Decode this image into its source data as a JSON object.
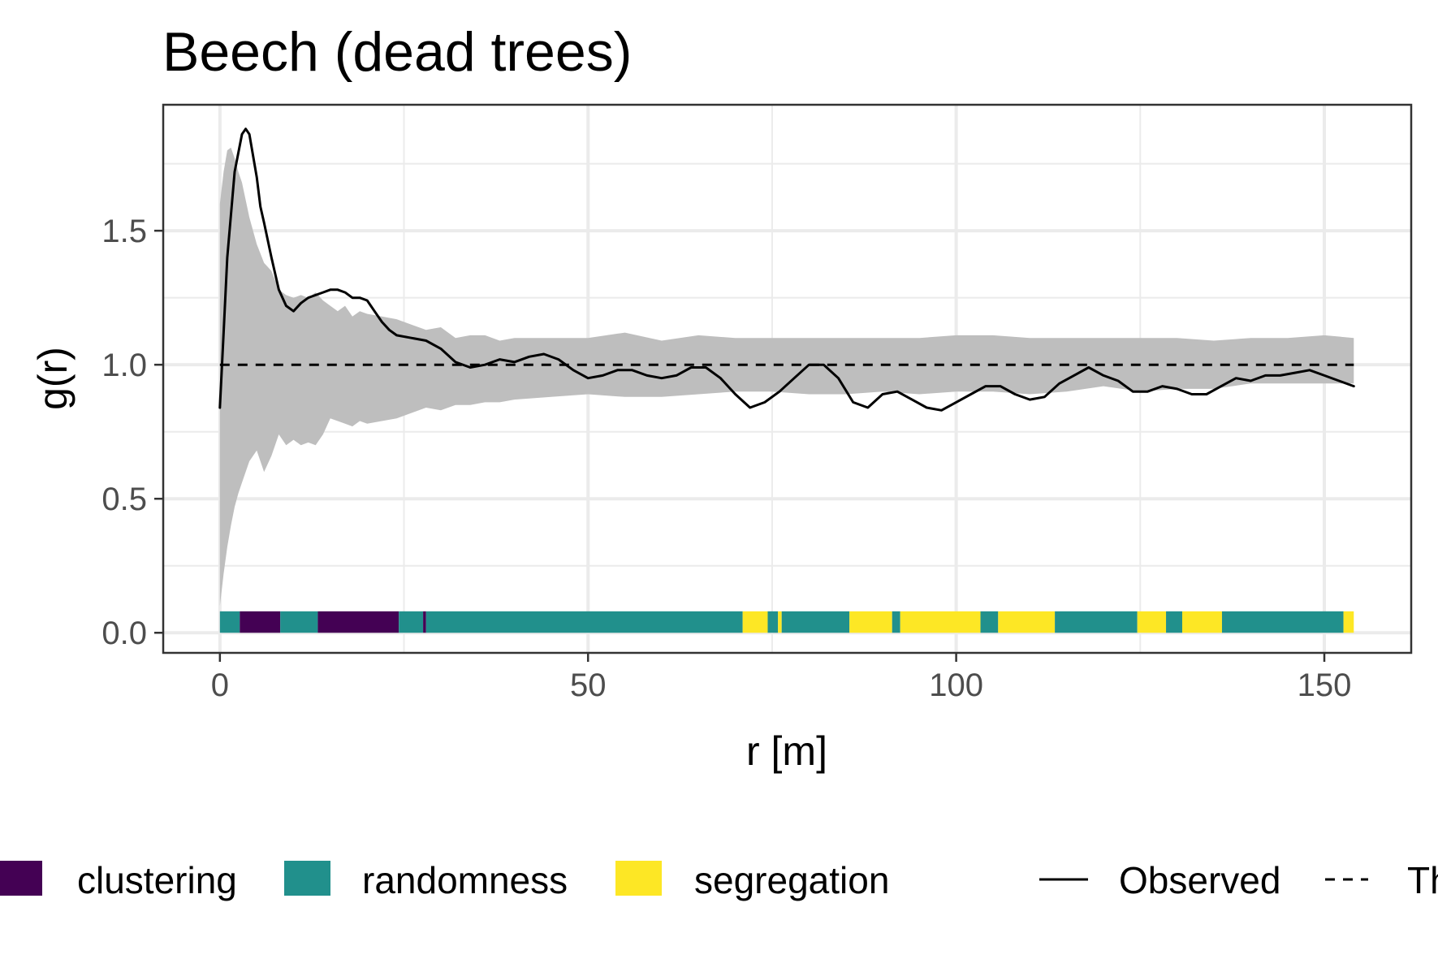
{
  "chart_data": {
    "type": "line",
    "title": "Beech (dead trees)",
    "xlabel": "r [m]",
    "ylabel": "g(r)",
    "xlim": [
      -7.7,
      161.8
    ],
    "ylim": [
      -0.075,
      1.97
    ],
    "x_ticks": [
      0,
      50,
      100,
      150
    ],
    "x_tick_labels": [
      "0",
      "50",
      "100",
      "150"
    ],
    "y_ticks": [
      0.0,
      0.5,
      1.0,
      1.5
    ],
    "y_tick_labels": [
      "0.0",
      "0.5",
      "1.0",
      "1.5"
    ],
    "grid": true,
    "legend_position": "bottom",
    "series": [
      {
        "name": "Observed",
        "style": "solid",
        "color": "#000000",
        "x": [
          0,
          0.5,
          1,
          2,
          3,
          3.5,
          4,
          5,
          5.5,
          6,
          7,
          8,
          9,
          10,
          11,
          12,
          13,
          14,
          15,
          16,
          17,
          18,
          19,
          20,
          21,
          22,
          23,
          24,
          26,
          28,
          30,
          32,
          34,
          36,
          38,
          40,
          42,
          44,
          46,
          48,
          50,
          52,
          54,
          56,
          58,
          60,
          62,
          64,
          66,
          68,
          70,
          72,
          74,
          76,
          78,
          80,
          82,
          84,
          86,
          88,
          90,
          92,
          94,
          96,
          98,
          100,
          102,
          104,
          106,
          108,
          110,
          112,
          114,
          116,
          118,
          120,
          122,
          124,
          126,
          128,
          130,
          132,
          134,
          136,
          138,
          140,
          142,
          144,
          146,
          148,
          150,
          152,
          154
        ],
        "y": [
          0.84,
          1.12,
          1.4,
          1.72,
          1.86,
          1.88,
          1.86,
          1.7,
          1.59,
          1.53,
          1.4,
          1.28,
          1.22,
          1.2,
          1.23,
          1.25,
          1.26,
          1.27,
          1.28,
          1.28,
          1.27,
          1.25,
          1.25,
          1.24,
          1.2,
          1.16,
          1.13,
          1.11,
          1.1,
          1.09,
          1.06,
          1.01,
          0.99,
          1.0,
          1.02,
          1.01,
          1.03,
          1.04,
          1.02,
          0.98,
          0.95,
          0.96,
          0.98,
          0.98,
          0.96,
          0.95,
          0.96,
          0.99,
          0.99,
          0.95,
          0.89,
          0.84,
          0.86,
          0.9,
          0.95,
          1.0,
          1.0,
          0.95,
          0.86,
          0.84,
          0.89,
          0.9,
          0.87,
          0.84,
          0.83,
          0.86,
          0.89,
          0.92,
          0.92,
          0.89,
          0.87,
          0.88,
          0.93,
          0.96,
          0.99,
          0.96,
          0.94,
          0.9,
          0.9,
          0.92,
          0.91,
          0.89,
          0.89,
          0.92,
          0.95,
          0.94,
          0.96,
          0.96,
          0.97,
          0.98,
          0.96,
          0.94,
          0.92
        ]
      },
      {
        "name": "Theoretical",
        "style": "dashed",
        "color": "#000000",
        "x": [
          0,
          154
        ],
        "y": [
          1.0,
          1.0
        ]
      }
    ],
    "envelope": {
      "color": "#bebebe",
      "x": [
        0,
        0.5,
        1,
        1.5,
        2,
        2.5,
        3,
        4,
        5,
        6,
        7,
        8,
        9,
        10,
        11,
        12,
        13,
        14,
        15,
        16,
        17,
        18,
        19,
        20,
        22,
        24,
        26,
        28,
        30,
        32,
        34,
        36,
        38,
        40,
        45,
        50,
        55,
        60,
        65,
        70,
        75,
        80,
        85,
        90,
        95,
        100,
        105,
        110,
        115,
        120,
        125,
        130,
        135,
        140,
        145,
        150,
        154
      ],
      "lo": [
        0.1,
        0.22,
        0.32,
        0.4,
        0.47,
        0.52,
        0.56,
        0.64,
        0.68,
        0.6,
        0.66,
        0.74,
        0.7,
        0.72,
        0.7,
        0.71,
        0.7,
        0.74,
        0.8,
        0.79,
        0.78,
        0.77,
        0.79,
        0.78,
        0.79,
        0.8,
        0.82,
        0.84,
        0.83,
        0.85,
        0.85,
        0.86,
        0.86,
        0.87,
        0.88,
        0.89,
        0.88,
        0.88,
        0.89,
        0.9,
        0.9,
        0.89,
        0.89,
        0.9,
        0.89,
        0.9,
        0.9,
        0.89,
        0.9,
        0.92,
        0.9,
        0.91,
        0.91,
        0.93,
        0.93,
        0.93,
        0.93
      ],
      "hi": [
        1.6,
        1.72,
        1.8,
        1.81,
        1.77,
        1.72,
        1.68,
        1.55,
        1.45,
        1.38,
        1.35,
        1.28,
        1.26,
        1.25,
        1.26,
        1.25,
        1.27,
        1.24,
        1.22,
        1.2,
        1.22,
        1.18,
        1.2,
        1.19,
        1.18,
        1.17,
        1.15,
        1.13,
        1.14,
        1.1,
        1.11,
        1.11,
        1.09,
        1.1,
        1.1,
        1.1,
        1.12,
        1.09,
        1.11,
        1.1,
        1.1,
        1.1,
        1.1,
        1.1,
        1.1,
        1.11,
        1.11,
        1.1,
        1.1,
        1.1,
        1.1,
        1.1,
        1.09,
        1.1,
        1.1,
        1.11,
        1.1
      ]
    },
    "band_y": [
      0.0,
      0.08
    ],
    "classification_bands": [
      {
        "start": 0,
        "end": 2.7,
        "class": "randomness"
      },
      {
        "start": 2.7,
        "end": 8.2,
        "class": "clustering"
      },
      {
        "start": 8.2,
        "end": 13.3,
        "class": "randomness"
      },
      {
        "start": 13.3,
        "end": 24.3,
        "class": "clustering"
      },
      {
        "start": 24.3,
        "end": 27.6,
        "class": "randomness"
      },
      {
        "start": 27.6,
        "end": 28.0,
        "class": "clustering"
      },
      {
        "start": 28.0,
        "end": 71.0,
        "class": "randomness"
      },
      {
        "start": 71.0,
        "end": 74.4,
        "class": "segregation"
      },
      {
        "start": 74.4,
        "end": 75.8,
        "class": "randomness"
      },
      {
        "start": 75.8,
        "end": 76.3,
        "class": "segregation"
      },
      {
        "start": 76.3,
        "end": 85.5,
        "class": "randomness"
      },
      {
        "start": 85.5,
        "end": 91.3,
        "class": "segregation"
      },
      {
        "start": 91.3,
        "end": 92.4,
        "class": "randomness"
      },
      {
        "start": 92.4,
        "end": 103.3,
        "class": "segregation"
      },
      {
        "start": 103.3,
        "end": 105.7,
        "class": "randomness"
      },
      {
        "start": 105.7,
        "end": 113.4,
        "class": "segregation"
      },
      {
        "start": 113.4,
        "end": 124.6,
        "class": "randomness"
      },
      {
        "start": 124.6,
        "end": 128.5,
        "class": "segregation"
      },
      {
        "start": 128.5,
        "end": 130.7,
        "class": "randomness"
      },
      {
        "start": 130.7,
        "end": 136.1,
        "class": "segregation"
      },
      {
        "start": 136.1,
        "end": 152.6,
        "class": "randomness"
      },
      {
        "start": 152.6,
        "end": 154.0,
        "class": "segregation"
      }
    ],
    "legend": {
      "fill_entries": [
        {
          "label": "clustering",
          "color": "#440154"
        },
        {
          "label": "randomness",
          "color": "#21908c"
        },
        {
          "label": "segregation",
          "color": "#fde725"
        }
      ],
      "line_entries": [
        {
          "label": "Observed",
          "style": "solid"
        },
        {
          "label": "Th",
          "style": "dashed"
        }
      ]
    }
  }
}
